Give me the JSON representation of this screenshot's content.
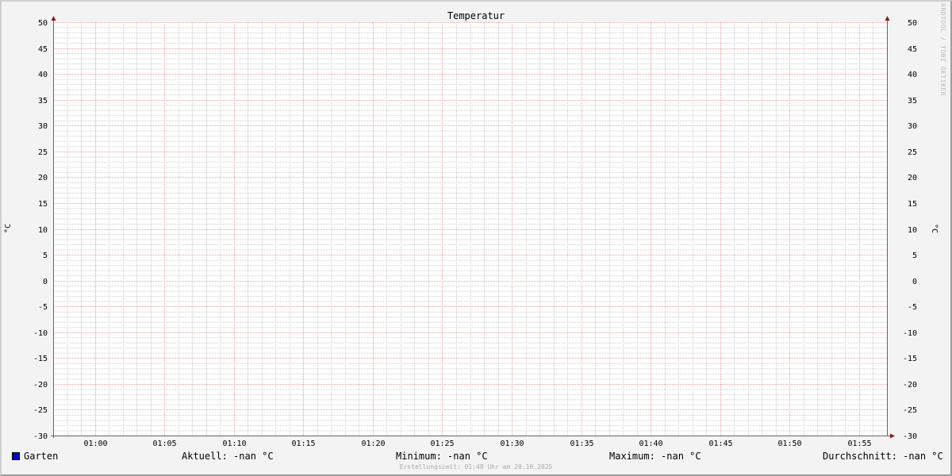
{
  "chart_data": {
    "type": "line",
    "title": "Temperatur",
    "ylabel": "°C",
    "ylabel_right": "°C",
    "ylim": [
      -30,
      50
    ],
    "y_major_step": 5,
    "y_minor_step": 1,
    "y_ticks": [
      "50",
      "45",
      "40",
      "35",
      "30",
      "25",
      "20",
      "15",
      "10",
      "5",
      "0",
      "-5",
      "-10",
      "-15",
      "-20",
      "-25",
      "-30"
    ],
    "xlim": [
      "00:57",
      "01:57"
    ],
    "x_ticks": [
      "01:00",
      "01:05",
      "01:10",
      "01:15",
      "01:20",
      "01:25",
      "01:30",
      "01:35",
      "01:40",
      "01:45",
      "01:50",
      "01:55"
    ],
    "x_minor_step_minutes": 1,
    "grid": true,
    "series": [
      {
        "name": "Garten",
        "color": "#0000cc",
        "values": []
      }
    ],
    "legend": {
      "series": "Garten",
      "current": "Aktuell: -nan °C",
      "minimum": "Minimum: -nan °C",
      "maximum": "Maximum: -nan °C",
      "average": "Durchschnitt: -nan °C"
    },
    "footer": "Erstellungszeit: 01:48 Uhr am 28.10.2025",
    "watermark": "RRDTOOL / TOBI OETIKER",
    "colors": {
      "background": "#f3f3f3",
      "canvas": "#ffffff",
      "major_grid": "#e8a0a0",
      "minor_grid": "#cccccc",
      "axis": "#666666",
      "arrow": "#8b1a1a"
    }
  }
}
